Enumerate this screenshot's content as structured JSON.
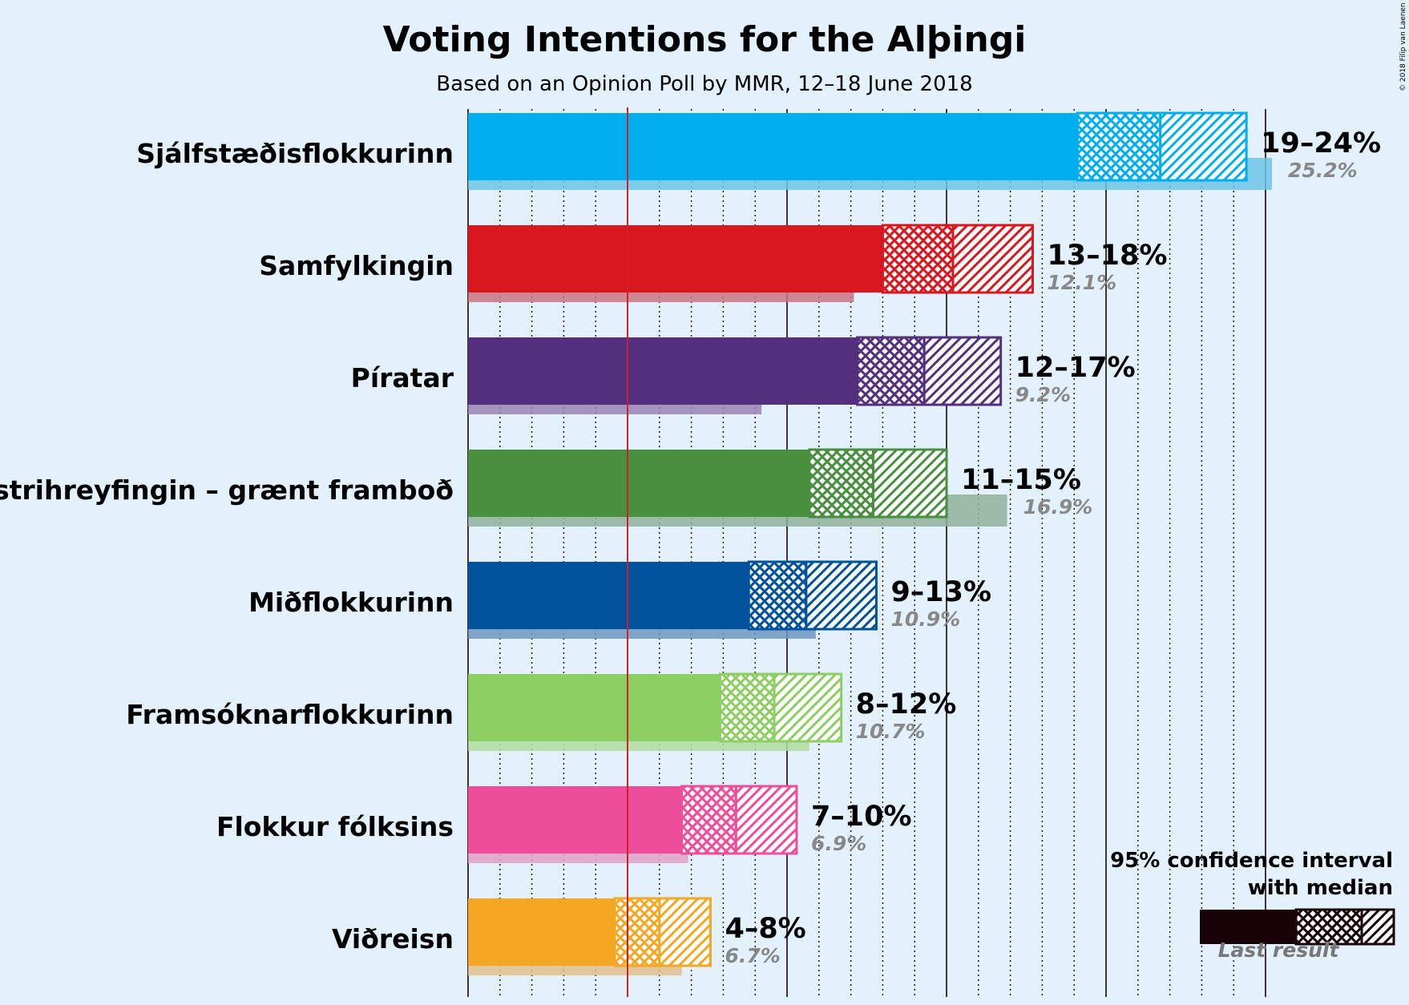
{
  "title": "Voting Intentions for the Alþingi",
  "subtitle": "Based on an Opinion Poll by MMR, 12–18 June 2018",
  "copyright": "© 2018 Filip van Laenen",
  "chart_data": {
    "type": "bar",
    "orientation": "horizontal",
    "x_unit": "%",
    "xlim": [
      0,
      25.4
    ],
    "major_gridlines": [
      0,
      5,
      10,
      15,
      20,
      25
    ],
    "minor_gridlines_step": 1,
    "threshold_line": 5,
    "parties": [
      {
        "name": "Sjálfstæðisflokkurinn",
        "range_label": "19–24%",
        "last_label": "25.2%",
        "ci_low": 19.1,
        "median": 21.7,
        "ci_high": 24.4,
        "last_result": 25.2,
        "color": "#00aeef",
        "last_color": "#6cc4e6"
      },
      {
        "name": "Samfylkingin",
        "range_label": "13–18%",
        "last_label": "12.1%",
        "ci_low": 13.0,
        "median": 15.2,
        "ci_high": 17.7,
        "last_result": 12.1,
        "color": "#d8171f",
        "last_color": "#c97680"
      },
      {
        "name": "Píratar",
        "range_label": "12–17%",
        "last_label": "9.2%",
        "ci_low": 12.2,
        "median": 14.3,
        "ci_high": 16.7,
        "last_result": 9.2,
        "color": "#542f7e",
        "last_color": "#9a85b3"
      },
      {
        "name": "Vinstrihreyfingin – grænt framboð",
        "range_label": "11–15%",
        "last_label": "16.9%",
        "ci_low": 10.7,
        "median": 12.7,
        "ci_high": 15.0,
        "last_result": 16.9,
        "color": "#488f40",
        "last_color": "#8fb19b"
      },
      {
        "name": "Miðflokkurinn",
        "range_label": "9–13%",
        "last_label": "10.9%",
        "ci_low": 8.8,
        "median": 10.6,
        "ci_high": 12.8,
        "last_result": 10.9,
        "color": "#00529c",
        "last_color": "#6e97bf"
      },
      {
        "name": "Framsóknarflokkurinn",
        "range_label": "8–12%",
        "last_label": "10.7%",
        "ci_low": 7.9,
        "median": 9.6,
        "ci_high": 11.7,
        "last_result": 10.7,
        "color": "#8cce62",
        "last_color": "#b3dca0"
      },
      {
        "name": "Flokkur fólksins",
        "range_label": "7–10%",
        "last_label": "6.9%",
        "ci_low": 6.7,
        "median": 8.4,
        "ci_high": 10.3,
        "last_result": 6.9,
        "color": "#ee4d9b",
        "last_color": "#e2a0c8"
      },
      {
        "name": "Viðreisn",
        "range_label": "4–8%",
        "last_label": "6.7%",
        "ci_low": 4.6,
        "median": 6.0,
        "ci_high": 7.6,
        "last_result": 6.7,
        "color": "#f5a623",
        "last_color": "#e0c08a"
      }
    ]
  },
  "legend": {
    "line1": "95% confidence interval",
    "line2": "with median",
    "last_result": "Last result",
    "color": "#1a0308",
    "last_color": "#7a7a7a"
  }
}
